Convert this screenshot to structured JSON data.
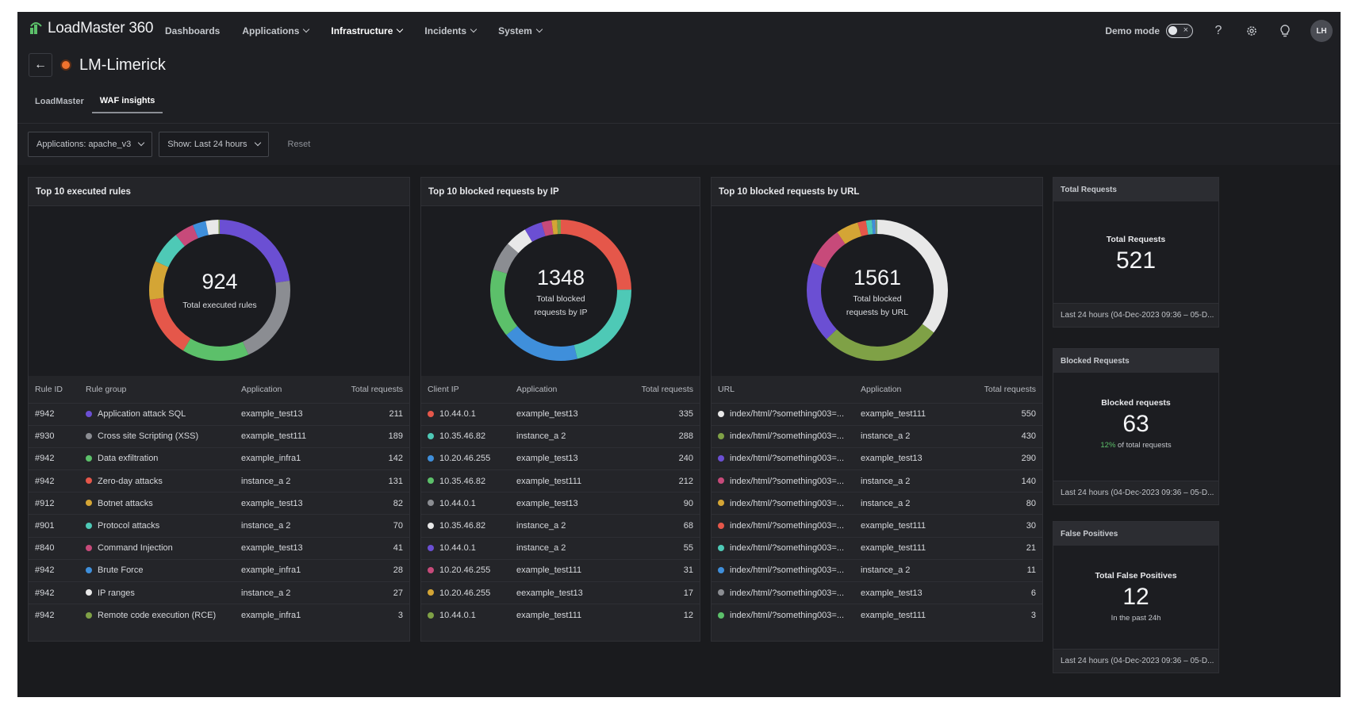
{
  "app": {
    "brand": "LoadMaster 360",
    "nav": [
      {
        "label": "Dashboards",
        "dropdown": false,
        "active": false
      },
      {
        "label": "Applications",
        "dropdown": true,
        "active": false
      },
      {
        "label": "Infrastructure",
        "dropdown": true,
        "active": true
      },
      {
        "label": "Incidents",
        "dropdown": true,
        "active": false
      },
      {
        "label": "System",
        "dropdown": true,
        "active": false
      }
    ],
    "demo_mode_label": "Demo mode",
    "avatar_initials": "LH",
    "icons": [
      "help-icon",
      "gear-icon",
      "lightbulb-icon"
    ]
  },
  "page": {
    "title": "LM-Limerick",
    "status_color": "#f0722e",
    "tabs": [
      {
        "label": "LoadMaster",
        "active": false
      },
      {
        "label": "WAF insights",
        "active": true
      }
    ]
  },
  "filters": {
    "application": "Applications: apache_v3",
    "show": "Show: Last 24 hours",
    "reset_label": "Reset"
  },
  "rules_card": {
    "title": "Top 10 executed rules",
    "center_value": "924",
    "center_label": "Total executed rules",
    "columns": [
      "Rule ID",
      "Rule group",
      "Application",
      "Total requests"
    ],
    "rows": [
      {
        "id": "#942",
        "group": "Application attack SQL",
        "app": "example_test13",
        "count": 211,
        "color": "#6b4fd3"
      },
      {
        "id": "#930",
        "group": "Cross site Scripting (XSS)",
        "app": "example_test111",
        "count": 189,
        "color": "#8b8d92"
      },
      {
        "id": "#942",
        "group": "Data exfiltration",
        "app": "example_infra1",
        "count": 142,
        "color": "#5cc06a"
      },
      {
        "id": "#942",
        "group": "Zero-day attacks",
        "app": "instance_a 2",
        "count": 131,
        "color": "#e5574a"
      },
      {
        "id": "#912",
        "group": "Botnet attacks",
        "app": "example_test13",
        "count": 82,
        "color": "#d4a535"
      },
      {
        "id": "#901",
        "group": "Protocol attacks",
        "app": "instance_a 2",
        "count": 70,
        "color": "#4ec9b6"
      },
      {
        "id": "#840",
        "group": "Command Injection",
        "app": "example_test13",
        "count": 41,
        "color": "#c74a7a"
      },
      {
        "id": "#942",
        "group": "Brute Force",
        "app": "example_infra1",
        "count": 28,
        "color": "#3f8fdb"
      },
      {
        "id": "#942",
        "group": "IP ranges",
        "app": "instance_a 2",
        "count": 27,
        "color": "#e8e8e8"
      },
      {
        "id": "#942",
        "group": "Remote code execution (RCE)",
        "app": "example_infra1",
        "count": 3,
        "color": "#7fa146"
      }
    ]
  },
  "ip_card": {
    "title": "Top 10 blocked requests by IP",
    "center_value": "1348",
    "center_label_1": "Total blocked",
    "center_label_2": "requests by IP",
    "columns": [
      "Client IP",
      "Application",
      "Total requests"
    ],
    "rows": [
      {
        "ip": "10.44.0.1",
        "app": "example_test13",
        "count": 335,
        "color": "#e5574a"
      },
      {
        "ip": "10.35.46.82",
        "app": "instance_a 2",
        "count": 288,
        "color": "#4ec9b6"
      },
      {
        "ip": "10.20.46.255",
        "app": "example_test13",
        "count": 240,
        "color": "#3f8fdb"
      },
      {
        "ip": "10.35.46.82",
        "app": "example_test111",
        "count": 212,
        "color": "#5cc06a"
      },
      {
        "ip": "10.44.0.1",
        "app": "example_test13",
        "count": 90,
        "color": "#8b8d92"
      },
      {
        "ip": "10.35.46.82",
        "app": "instance_a 2",
        "count": 68,
        "color": "#e8e8e8"
      },
      {
        "ip": "10.44.0.1",
        "app": "instance_a 2",
        "count": 55,
        "color": "#6b4fd3"
      },
      {
        "ip": "10.20.46.255",
        "app": "example_test111",
        "count": 31,
        "color": "#c74a7a"
      },
      {
        "ip": "10.20.46.255",
        "app": "eexample_test13",
        "count": 17,
        "color": "#d4a535"
      },
      {
        "ip": "10.44.0.1",
        "app": "example_test111",
        "count": 12,
        "color": "#7fa146"
      }
    ]
  },
  "url_card": {
    "title": "Top 10 blocked requests by URL",
    "center_value": "1561",
    "center_label_1": "Total blocked",
    "center_label_2": "requests by URL",
    "columns": [
      "URL",
      "Application",
      "Total requests"
    ],
    "rows": [
      {
        "url": "index/html/?something003=...",
        "app": "example_test111",
        "count": 550,
        "color": "#e8e8e8"
      },
      {
        "url": "index/html/?something003=...",
        "app": "instance_a 2",
        "count": 430,
        "color": "#7fa146"
      },
      {
        "url": "index/html/?something003=...",
        "app": "example_test13",
        "count": 290,
        "color": "#6b4fd3"
      },
      {
        "url": "index/html/?something003=...",
        "app": "instance_a 2",
        "count": 140,
        "color": "#c74a7a"
      },
      {
        "url": "index/html/?something003=...",
        "app": "instance_a 2",
        "count": 80,
        "color": "#d4a535"
      },
      {
        "url": "index/html/?something003=...",
        "app": "example_test111",
        "count": 30,
        "color": "#e5574a"
      },
      {
        "url": "index/html/?something003=...",
        "app": "example_test111",
        "count": 21,
        "color": "#4ec9b6"
      },
      {
        "url": "index/html/?something003=...",
        "app": "instance_a 2",
        "count": 11,
        "color": "#3f8fdb"
      },
      {
        "url": "index/html/?something003=...",
        "app": "example_test13",
        "count": 6,
        "color": "#8b8d92"
      },
      {
        "url": "index/html/?something003=...",
        "app": "example_test111",
        "count": 3,
        "color": "#5cc06a"
      }
    ]
  },
  "stats": {
    "total": {
      "header": "Total Requests",
      "name": "Total Requests",
      "value": "521",
      "footer": "Last 24 hours (04-Dec-2023 09:36 – 05-D..."
    },
    "blocked": {
      "header": "Blocked Requests",
      "name": "Blocked requests",
      "value": "63",
      "sub_percent": "12%",
      "sub_text": " of total requests",
      "footer": "Last 24 hours (04-Dec-2023 09:36 – 05-D..."
    },
    "false_positives": {
      "header": "False Positives",
      "name": "Total False Positives",
      "value": "12",
      "sub_text": "In the past 24h",
      "footer": "Last 24 hours (04-Dec-2023 09:36 – 05-D..."
    }
  },
  "chart_data": [
    {
      "type": "pie",
      "title": "Top 10 executed rules",
      "categories": [
        "Application attack SQL",
        "Cross site Scripting (XSS)",
        "Data exfiltration",
        "Zero-day attacks",
        "Botnet attacks",
        "Protocol attacks",
        "Command Injection",
        "Brute Force",
        "IP ranges",
        "Remote code execution (RCE)"
      ],
      "values": [
        211,
        189,
        142,
        131,
        82,
        70,
        41,
        28,
        27,
        3
      ],
      "total": 924
    },
    {
      "type": "pie",
      "title": "Top 10 blocked requests by IP",
      "categories": [
        "10.44.0.1",
        "10.35.46.82",
        "10.20.46.255",
        "10.35.46.82",
        "10.44.0.1",
        "10.35.46.82",
        "10.44.0.1",
        "10.20.46.255",
        "10.20.46.255",
        "10.44.0.1"
      ],
      "values": [
        335,
        288,
        240,
        212,
        90,
        68,
        55,
        31,
        17,
        12
      ],
      "total": 1348
    },
    {
      "type": "pie",
      "title": "Top 10 blocked requests by URL",
      "categories": [
        "index/html/?something003=...",
        "index/html/?something003=...",
        "index/html/?something003=...",
        "index/html/?something003=...",
        "index/html/?something003=...",
        "index/html/?something003=...",
        "index/html/?something003=...",
        "index/html/?something003=...",
        "index/html/?something003=...",
        "index/html/?something003=..."
      ],
      "values": [
        550,
        430,
        290,
        140,
        80,
        30,
        21,
        11,
        6,
        3
      ],
      "total": 1561
    }
  ]
}
